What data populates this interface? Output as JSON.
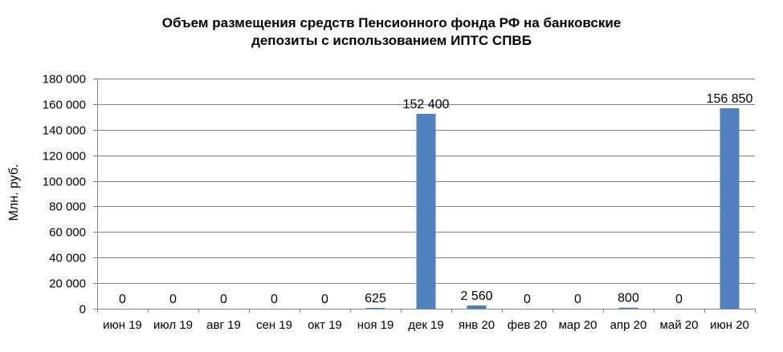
{
  "chart_data": {
    "type": "bar",
    "title": "Объем размещения средств Пенсионного фонда РФ  на банковские депозиты с использованием ИПТС СПВБ",
    "title_lines": [
      "Объем размещения средств Пенсионного фонда РФ  на банковские",
      "депозиты с использованием ИПТС СПВБ"
    ],
    "xlabel": "",
    "ylabel": "Млн. руб.",
    "ylim": [
      0,
      180000
    ],
    "yticks": [
      0,
      20000,
      40000,
      60000,
      80000,
      100000,
      120000,
      140000,
      160000,
      180000
    ],
    "ytick_labels": [
      "0",
      "20 000",
      "40 000",
      "60 000",
      "80 000",
      "100 000",
      "120 000",
      "140 000",
      "160 000",
      "180 000"
    ],
    "categories": [
      "июн 19",
      "июл 19",
      "авг 19",
      "сен 19",
      "окт 19",
      "ноя 19",
      "дек 19",
      "янв 20",
      "фев 20",
      "мар 20",
      "апр 20",
      "май 20",
      "июн 20"
    ],
    "values": [
      0,
      0,
      0,
      0,
      0,
      625,
      152400,
      2560,
      0,
      0,
      800,
      0,
      156850
    ],
    "data_labels": [
      "0",
      "0",
      "0",
      "0",
      "0",
      "625",
      "152 400",
      "2 560",
      "0",
      "0",
      "800",
      "0",
      "156 850"
    ],
    "bar_color": "#4F81BD",
    "grid": true,
    "grid_color": "#868686",
    "legend": "none"
  }
}
